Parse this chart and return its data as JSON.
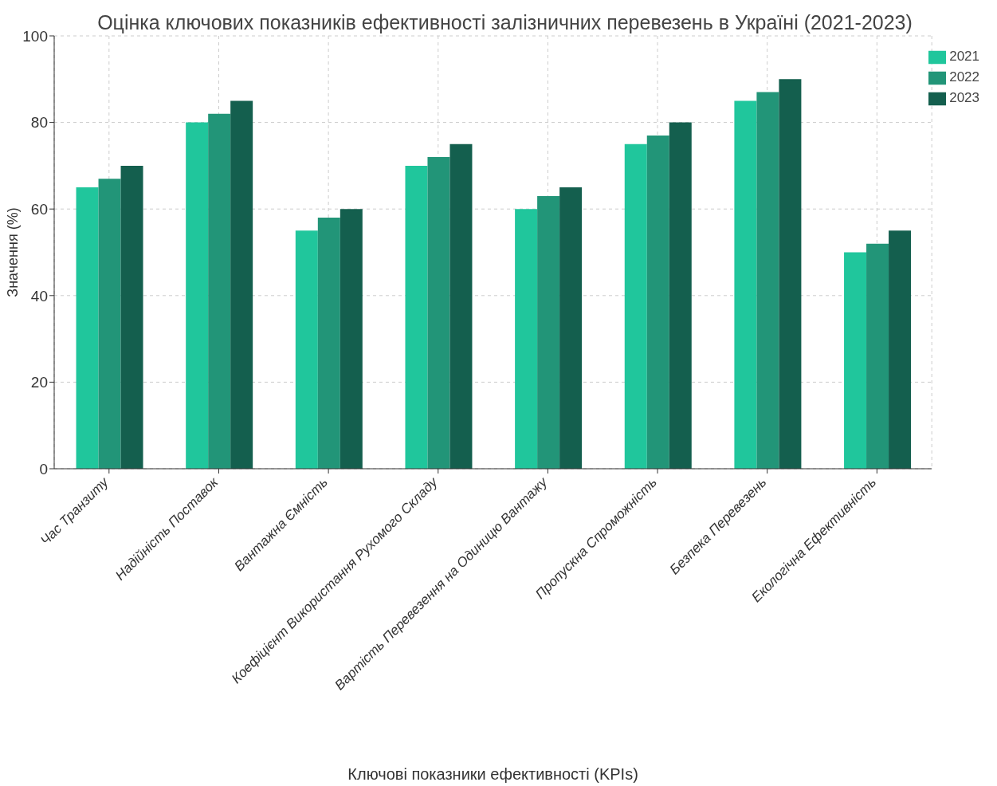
{
  "chart_data": {
    "type": "bar",
    "title": "Оцінка ключових показників ефективності залізничних перевезень в Україні (2021-2023)",
    "xlabel": "Ключові показники ефективності (KPIs)",
    "ylabel": "Значення (%)",
    "categories": [
      "Час Транзиту",
      "Надійність Поставок",
      "Вантажна Ємність",
      "Коефіцієнт Використання Рухомого Складу",
      "Вартість Перевезення на Одиницю Вантажу",
      "Пропускна Спроможність",
      "Безпека Перевезень",
      "Екологічна Ефективність"
    ],
    "series": [
      {
        "name": "2021",
        "color": "#20c69c",
        "values": [
          65,
          80,
          55,
          70,
          60,
          75,
          85,
          50
        ]
      },
      {
        "name": "2022",
        "color": "#229578",
        "values": [
          67,
          82,
          58,
          72,
          63,
          77,
          87,
          52
        ]
      },
      {
        "name": "2023",
        "color": "#145f4e",
        "values": [
          70,
          85,
          60,
          75,
          65,
          80,
          90,
          55
        ]
      }
    ],
    "ylim": [
      0,
      100
    ],
    "yticks": [
      0,
      20,
      40,
      60,
      80,
      100
    ],
    "grid": true,
    "legend": "top right"
  }
}
